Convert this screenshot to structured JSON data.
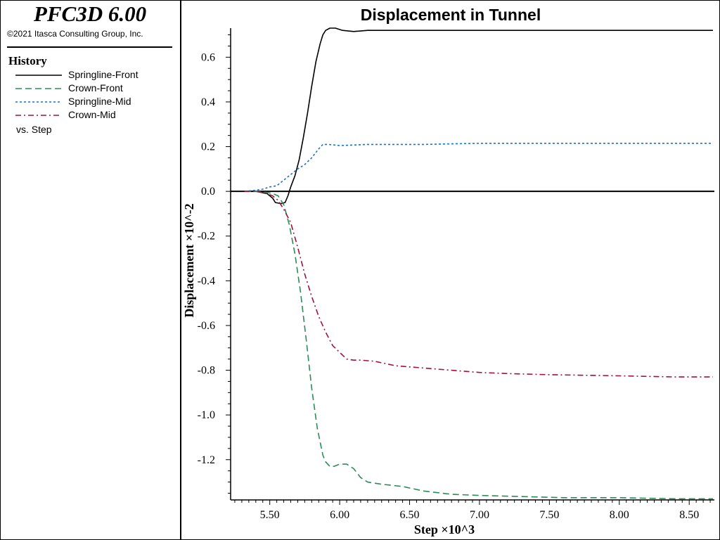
{
  "sidebar": {
    "app_title": "PFC3D 6.00",
    "copyright": "©2021 Itasca Consulting Group, Inc.",
    "history_title": "History",
    "vs_label": "vs. Step"
  },
  "chart_data": {
    "type": "line",
    "title": "Displacement in Tunnel",
    "xlabel": "Step ×10^3",
    "ylabel": "Displacement ×10^-2",
    "xlim": [
      5.22,
      8.68
    ],
    "ylim": [
      -1.38,
      0.73
    ],
    "xticks": [
      "5.50",
      "6.00",
      "6.50",
      "7.00",
      "7.50",
      "8.00",
      "8.50"
    ],
    "yticks": [
      "0.6",
      "0.4",
      "0.2",
      "0.0",
      "-0.2",
      "-0.4",
      "-0.6",
      "-0.8",
      "-1.0",
      "-1.2"
    ],
    "zero_line": true,
    "legend_placement": "sidebar",
    "series": [
      {
        "name": "Springline-Front",
        "color": "#000000",
        "dash": "solid",
        "x": [
          5.32,
          5.4,
          5.48,
          5.52,
          5.54,
          5.58,
          5.61,
          5.63,
          5.65,
          5.68,
          5.71,
          5.74,
          5.77,
          5.8,
          5.83,
          5.86,
          5.88,
          5.9,
          5.93,
          5.97,
          6.02,
          6.1,
          6.2,
          6.4,
          6.8,
          7.2,
          7.6,
          8.0,
          8.4,
          8.67
        ],
        "y": [
          0.0,
          0.0,
          -0.01,
          -0.03,
          -0.05,
          -0.055,
          -0.05,
          -0.02,
          0.02,
          0.07,
          0.14,
          0.24,
          0.35,
          0.47,
          0.58,
          0.66,
          0.7,
          0.72,
          0.73,
          0.73,
          0.72,
          0.715,
          0.72,
          0.72,
          0.72,
          0.72,
          0.72,
          0.72,
          0.72,
          0.72
        ]
      },
      {
        "name": "Crown-Front",
        "color": "#2e8b57",
        "dash": "long-dash",
        "x": [
          5.32,
          5.4,
          5.48,
          5.52,
          5.56,
          5.6,
          5.64,
          5.68,
          5.72,
          5.76,
          5.8,
          5.84,
          5.88,
          5.9,
          5.93,
          5.96,
          6.0,
          6.05,
          6.1,
          6.15,
          6.2,
          6.3,
          6.45,
          6.6,
          6.8,
          7.0,
          7.3,
          7.6,
          8.0,
          8.4,
          8.67
        ],
        "y": [
          0.0,
          0.0,
          -0.005,
          -0.01,
          -0.02,
          -0.06,
          -0.15,
          -0.28,
          -0.45,
          -0.66,
          -0.88,
          -1.06,
          -1.18,
          -1.21,
          -1.23,
          -1.23,
          -1.22,
          -1.22,
          -1.24,
          -1.28,
          -1.3,
          -1.31,
          -1.32,
          -1.34,
          -1.355,
          -1.36,
          -1.365,
          -1.37,
          -1.37,
          -1.375,
          -1.375
        ]
      },
      {
        "name": "Springline-Mid",
        "color": "#1e6fc0",
        "dash": "dotted",
        "x": [
          5.32,
          5.4,
          5.45,
          5.5,
          5.55,
          5.6,
          5.65,
          5.7,
          5.75,
          5.8,
          5.85,
          5.88,
          5.92,
          6.0,
          6.2,
          6.6,
          7.0,
          7.5,
          8.0,
          8.67
        ],
        "y": [
          0.0,
          0.005,
          0.01,
          0.02,
          0.025,
          0.05,
          0.075,
          0.1,
          0.12,
          0.15,
          0.19,
          0.21,
          0.21,
          0.205,
          0.21,
          0.21,
          0.215,
          0.215,
          0.215,
          0.215
        ]
      },
      {
        "name": "Crown-Mid",
        "color": "#a0123c",
        "dash": "dash-dot",
        "x": [
          5.32,
          5.4,
          5.48,
          5.52,
          5.56,
          5.6,
          5.65,
          5.7,
          5.75,
          5.8,
          5.85,
          5.9,
          5.95,
          6.0,
          6.05,
          6.1,
          6.15,
          6.25,
          6.4,
          6.6,
          6.8,
          7.0,
          7.2,
          7.5,
          8.0,
          8.4,
          8.67
        ],
        "y": [
          0.0,
          0.0,
          -0.01,
          -0.02,
          -0.04,
          -0.08,
          -0.14,
          -0.25,
          -0.37,
          -0.47,
          -0.56,
          -0.63,
          -0.69,
          -0.72,
          -0.75,
          -0.755,
          -0.755,
          -0.76,
          -0.78,
          -0.79,
          -0.8,
          -0.81,
          -0.815,
          -0.82,
          -0.825,
          -0.83,
          -0.83
        ]
      }
    ]
  }
}
